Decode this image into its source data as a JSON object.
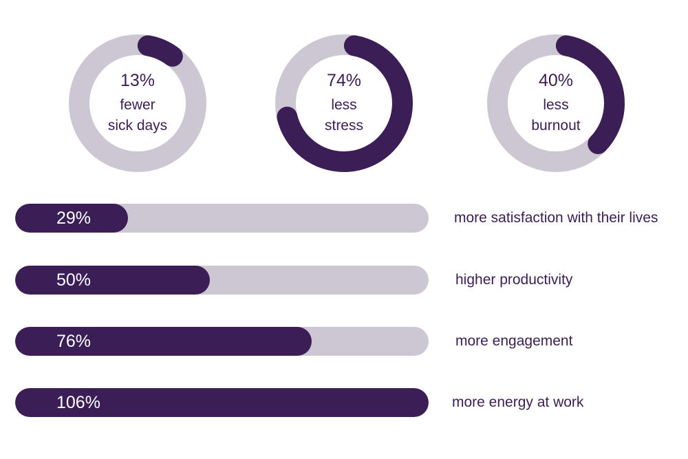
{
  "colors": {
    "accent": "#3a1e55",
    "track": "#cdc7d3",
    "on_accent": "#ffffff"
  },
  "chart_data": [
    {
      "type": "pie",
      "variant": "donut",
      "series": [
        {
          "value_label": "13%",
          "value": 13,
          "label_line1": "fewer",
          "label_line2": "sick days"
        },
        {
          "value_label": "74%",
          "value": 74,
          "label_line1": "less",
          "label_line2": "stress"
        },
        {
          "value_label": "40%",
          "value": 40,
          "label_line1": "less",
          "label_line2": "burnout"
        }
      ]
    },
    {
      "type": "bar",
      "orientation": "horizontal",
      "max": 106,
      "rows": [
        {
          "value_label": "29%",
          "value": 29,
          "label": "more satisfaction with their lives"
        },
        {
          "value_label": "50%",
          "value": 50,
          "label": "higher productivity"
        },
        {
          "value_label": "76%",
          "value": 76,
          "label": "more engagement"
        },
        {
          "value_label": "106%",
          "value": 106,
          "label": "more energy at work"
        }
      ]
    }
  ]
}
